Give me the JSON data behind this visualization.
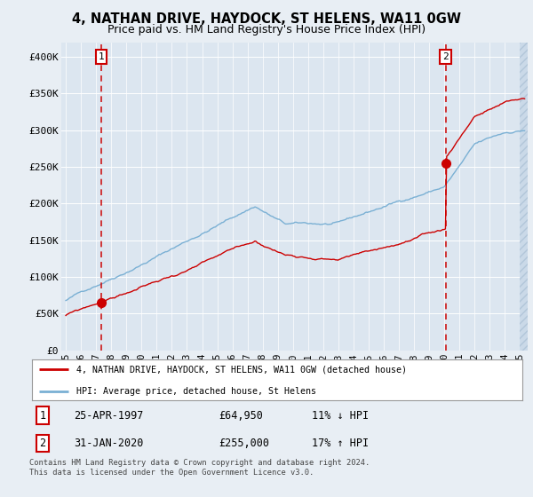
{
  "title": "4, NATHAN DRIVE, HAYDOCK, ST HELENS, WA11 0GW",
  "subtitle": "Price paid vs. HM Land Registry's House Price Index (HPI)",
  "ylim": [
    0,
    420000
  ],
  "yticks": [
    0,
    50000,
    100000,
    150000,
    200000,
    250000,
    300000,
    350000,
    400000
  ],
  "ytick_labels": [
    "£0",
    "£50K",
    "£100K",
    "£150K",
    "£200K",
    "£250K",
    "£300K",
    "£350K",
    "£400K"
  ],
  "xticks": [
    1995,
    1996,
    1997,
    1998,
    1999,
    2000,
    2001,
    2002,
    2003,
    2004,
    2005,
    2006,
    2007,
    2008,
    2009,
    2010,
    2011,
    2012,
    2013,
    2014,
    2015,
    2016,
    2017,
    2018,
    2019,
    2020,
    2021,
    2022,
    2023,
    2024,
    2025
  ],
  "sale1_x": 1997.32,
  "sale1_y": 64950,
  "sale1_label": "1",
  "sale2_x": 2020.08,
  "sale2_y": 255000,
  "sale2_label": "2",
  "red_line_color": "#cc0000",
  "blue_line_color": "#7ab0d4",
  "bg_color": "#e8eef4",
  "plot_bg": "#dce6f0",
  "grid_color": "#ffffff",
  "hatch_color": "#c8d8e8",
  "legend_label_red": "4, NATHAN DRIVE, HAYDOCK, ST HELENS, WA11 0GW (detached house)",
  "legend_label_blue": "HPI: Average price, detached house, St Helens",
  "table_row1": [
    "1",
    "25-APR-1997",
    "£64,950",
    "11% ↓ HPI"
  ],
  "table_row2": [
    "2",
    "31-JAN-2020",
    "£255,000",
    "17% ↑ HPI"
  ],
  "footer": "Contains HM Land Registry data © Crown copyright and database right 2024.\nThis data is licensed under the Open Government Licence v3.0.",
  "title_fontsize": 10.5,
  "subtitle_fontsize": 9
}
